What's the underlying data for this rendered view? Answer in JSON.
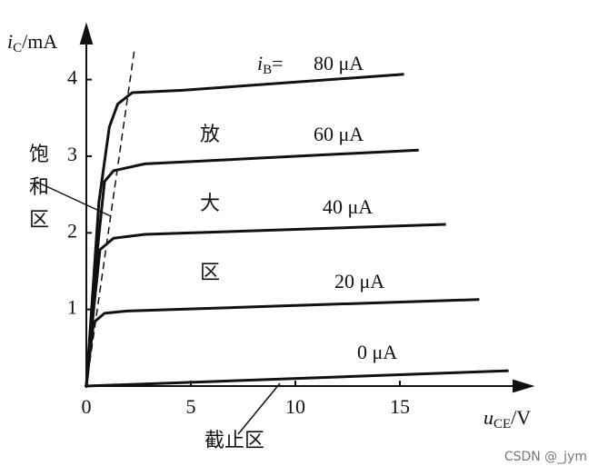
{
  "chart_data": {
    "type": "line",
    "ylabel": {
      "main": "i",
      "sub": "C",
      "unit": "/mA"
    },
    "xlabel": {
      "main": "u",
      "sub": "CE",
      "unit": "/V"
    },
    "xlim": [
      0,
      21
    ],
    "ylim": [
      0,
      4.6
    ],
    "xticks": [
      0,
      5,
      10,
      15
    ],
    "yticks": [
      1,
      2,
      3,
      4
    ],
    "grid": false,
    "color": "#111",
    "series_prefix": {
      "main": "i",
      "sub": "B",
      "rest": "="
    },
    "series": [
      {
        "name": "80 μA",
        "x": [
          0,
          0.6,
          1.1,
          1.5,
          2.2,
          4.6,
          15.2
        ],
        "values": [
          0,
          2.4,
          3.38,
          3.68,
          3.83,
          3.86,
          4.07
        ]
      },
      {
        "name": "60 μA",
        "x": [
          0,
          0.5,
          0.87,
          1.3,
          2.8,
          15.9
        ],
        "values": [
          0,
          1.7,
          2.67,
          2.81,
          2.9,
          3.08
        ]
      },
      {
        "name": "40 μA",
        "x": [
          0,
          0.35,
          0.65,
          1.3,
          2.8,
          17.2
        ],
        "values": [
          0,
          1.0,
          1.78,
          1.93,
          1.98,
          2.11
        ]
      },
      {
        "name": "20 μA",
        "x": [
          0,
          0.2,
          0.35,
          0.87,
          1.96,
          18.8
        ],
        "values": [
          0,
          0.5,
          0.83,
          0.95,
          0.98,
          1.13
        ]
      },
      {
        "name": "0 μA",
        "x": [
          0,
          20.2
        ],
        "values": [
          0,
          0.2
        ]
      }
    ],
    "saturation_line": {
      "x": [
        0,
        2.3
      ],
      "values": [
        0,
        4.39
      ]
    },
    "regions": {
      "amplify": [
        "放",
        "大",
        "区"
      ],
      "saturation": [
        "饱",
        "和",
        "区"
      ],
      "cutoff": "截止区"
    },
    "watermark": "CSDN @_jym"
  }
}
